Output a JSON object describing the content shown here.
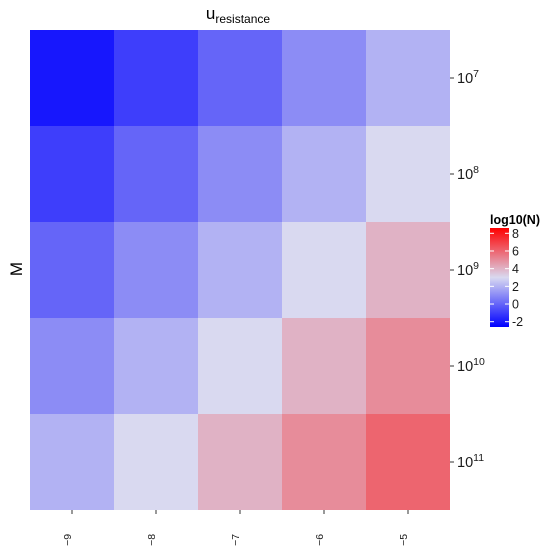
{
  "chart_data": {
    "type": "heatmap",
    "title": {
      "base": "u",
      "sub": "resistance"
    },
    "xlabel": "",
    "ylabel": "M",
    "x_ticks": [
      {
        "base": "10",
        "exp": "−9"
      },
      {
        "base": "10",
        "exp": "−8"
      },
      {
        "base": "10",
        "exp": "−7"
      },
      {
        "base": "10",
        "exp": "−6"
      },
      {
        "base": "10",
        "exp": "−5"
      }
    ],
    "y_ticks": [
      {
        "base": "10",
        "exp": "7"
      },
      {
        "base": "10",
        "exp": "8"
      },
      {
        "base": "10",
        "exp": "9"
      },
      {
        "base": "10",
        "exp": "10"
      },
      {
        "base": "10",
        "exp": "11"
      }
    ],
    "x_values": [
      1e-09,
      1e-08,
      1e-07,
      1e-06,
      1e-05
    ],
    "y_values": [
      10000000.0,
      100000000.0,
      1000000000.0,
      10000000000.0,
      100000000000.0
    ],
    "z": [
      [
        -2,
        -1,
        0,
        1,
        2
      ],
      [
        -1,
        0,
        1,
        2,
        3
      ],
      [
        0,
        1,
        2,
        3,
        4
      ],
      [
        1,
        2,
        3,
        4,
        5
      ],
      [
        2,
        3,
        4,
        5,
        6
      ]
    ],
    "legend": {
      "title": "log10(N)",
      "position": "right",
      "ticks": [
        "8",
        "6",
        "4",
        "2",
        "0",
        "-2"
      ],
      "tick_values": [
        8,
        6,
        4,
        2,
        0,
        -2
      ],
      "range": [
        -2.6,
        8.6
      ]
    },
    "colors": {
      "low": "#0000FF",
      "mid": "#D9D9F0",
      "high": "#FF0000"
    },
    "grid": false
  }
}
